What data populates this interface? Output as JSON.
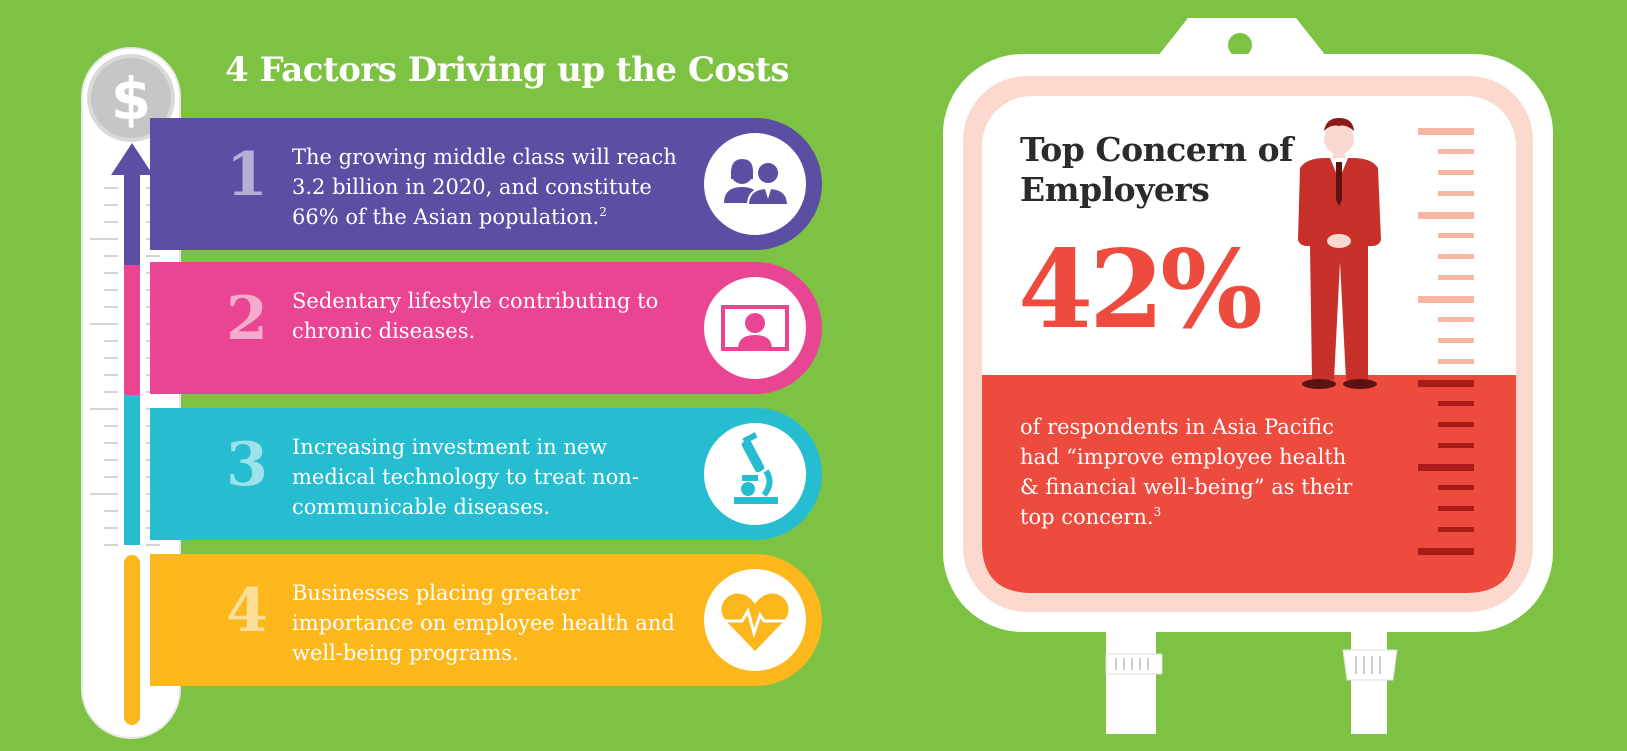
{
  "title": "4 Factors Driving up the Costs",
  "thermometer": {
    "icon": "dollar-icon",
    "symbol": "$"
  },
  "factors": [
    {
      "number": "1",
      "text": "The growing middle class will reach 3.2 billion in 2020, and constitute 66% of the Asian population.",
      "note": "2",
      "icon": "people-icon",
      "color": "#5b4fa3"
    },
    {
      "number": "2",
      "text": "Sedentary lifestyle contributing to chronic diseases.",
      "icon": "computer-user-icon",
      "color": "#ea4592"
    },
    {
      "number": "3",
      "text": "Increasing investment in new medical technology to treat non-communicable diseases.",
      "icon": "microscope-icon",
      "color": "#26bdd1"
    },
    {
      "number": "4",
      "text": "Businesses placing greater importance on employee health and well-being programs.",
      "icon": "heartbeat-icon",
      "color": "#fbb71c"
    }
  ],
  "concern": {
    "heading": "Top Concern of Employers",
    "percent": "42%",
    "percent_value": 42,
    "description": "of respondents in Asia Pacific had “improve employee health & financial well-being” as their top concern.",
    "note": "3",
    "icon": "businessman-icon",
    "accent": "#ed4b3e"
  }
}
